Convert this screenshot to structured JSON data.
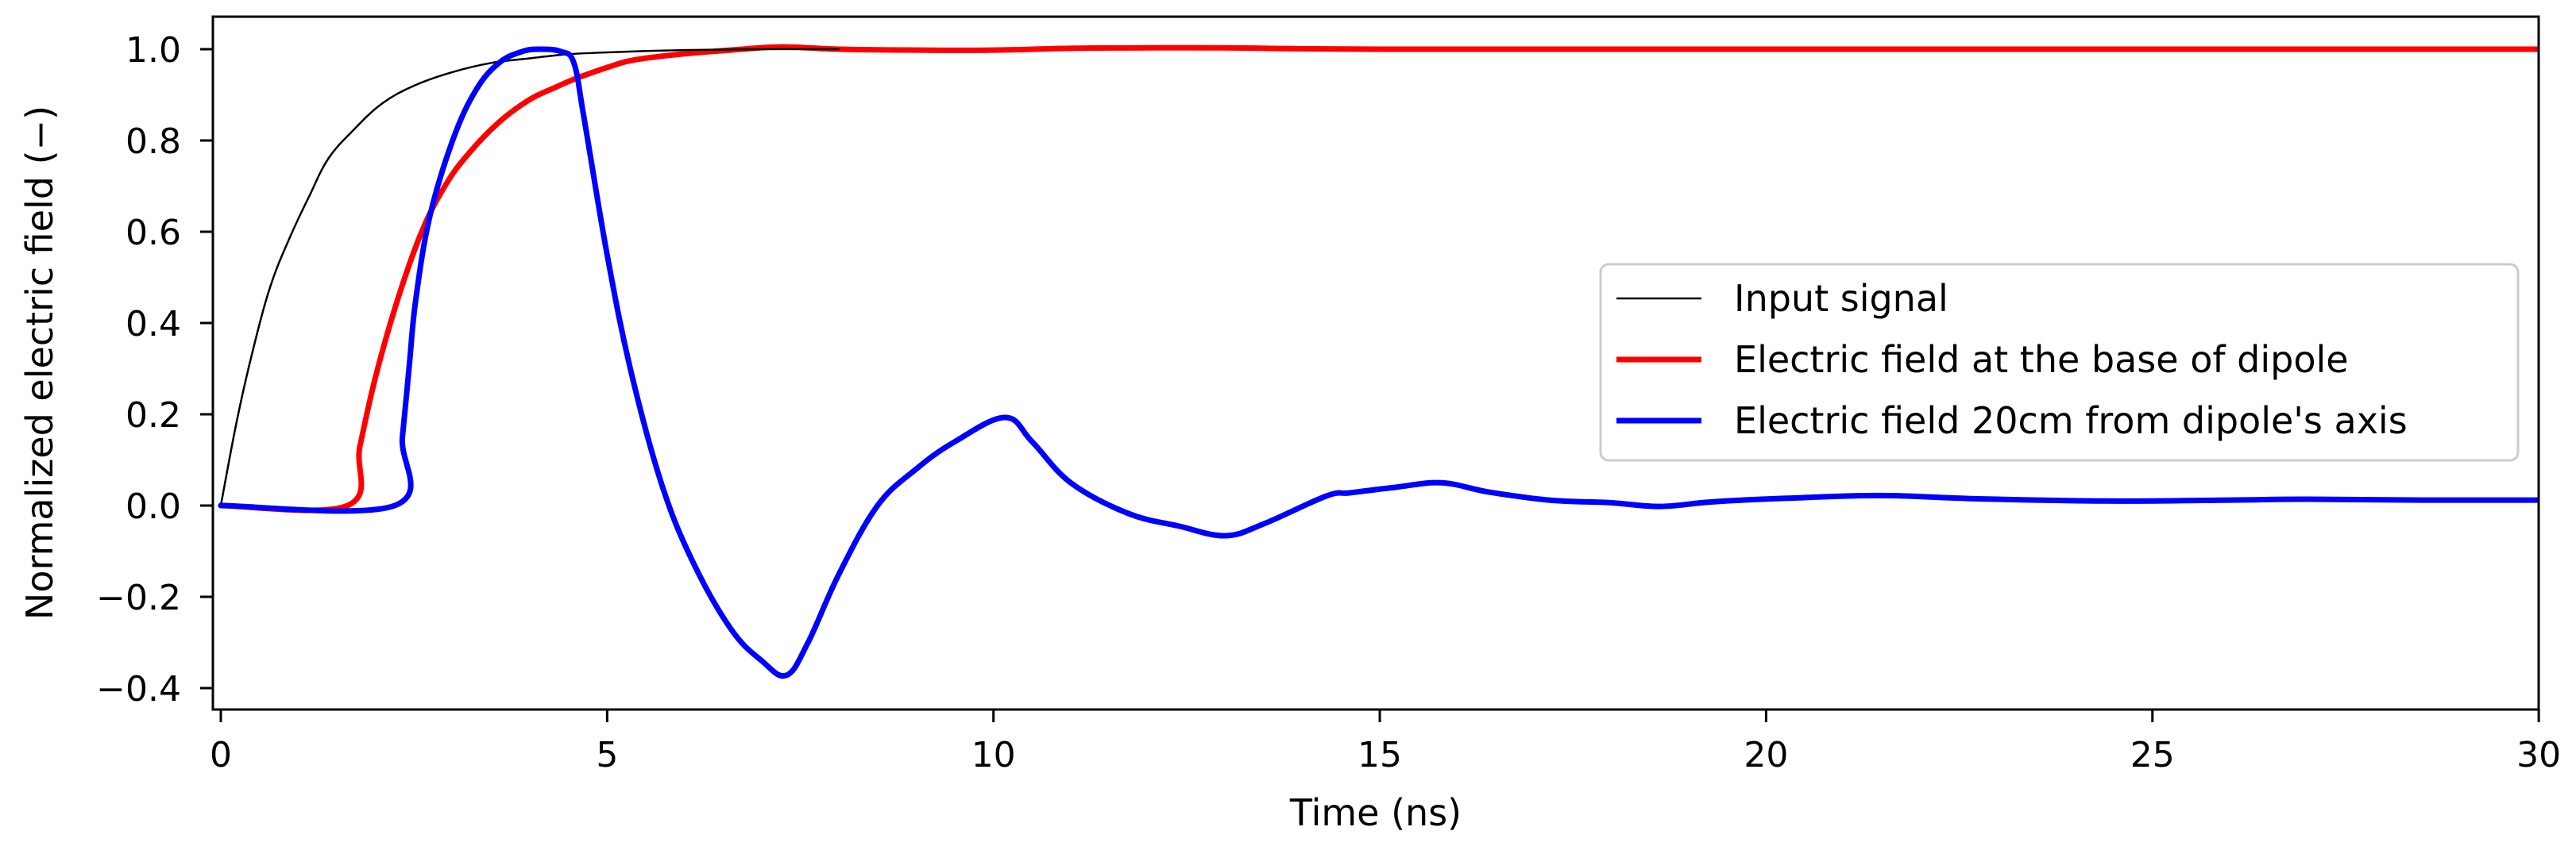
{
  "chart_data": {
    "type": "line",
    "title": "",
    "xlabel": "Time (ns)",
    "ylabel": "Normalized electric field (−)",
    "xlim": [
      -0.1,
      30
    ],
    "ylim": [
      -0.475,
      1.07
    ],
    "grid": false,
    "legend_position": "center right",
    "x_ticks": [
      0,
      5,
      10,
      15,
      20,
      25,
      30
    ],
    "x_tick_labels": [
      "0",
      "5",
      "10",
      "15",
      "20",
      "25",
      "30"
    ],
    "y_ticks": [
      1.0,
      0.8,
      0.6,
      0.4,
      0.2,
      0.0,
      -0.2,
      -0.4
    ],
    "y_tick_labels": [
      "1.0",
      "0.8",
      "0.6",
      "0.4",
      "0.2",
      "0.0",
      "−0.2",
      "−0.4"
    ],
    "series": [
      {
        "name": "Input signal",
        "color": "#000000",
        "line_width": 2.5,
        "x": [
          0,
          0.2,
          0.4,
          0.64,
          0.9,
          1.15,
          1.39,
          1.7,
          2.08,
          2.5,
          3.0,
          3.5,
          4.0,
          4.5,
          5.0,
          5.5,
          6.0,
          7.0,
          8.0
        ],
        "y": [
          0,
          0.18,
          0.33,
          0.48,
          0.59,
          0.68,
          0.76,
          0.82,
          0.88,
          0.92,
          0.95,
          0.97,
          0.98,
          0.989,
          0.993,
          0.996,
          0.998,
          1.0,
          1.0
        ]
      },
      {
        "name": "Electric field at the base of dipole",
        "color": "#ff0000",
        "line_width": 7,
        "x": [
          0,
          1.64,
          1.8,
          2.0,
          2.28,
          2.6,
          2.9,
          3.2,
          3.6,
          4.0,
          4.34,
          4.57,
          5.0,
          5.37,
          6.0,
          6.6,
          7.25,
          8.0,
          9.0,
          10.0,
          11.0,
          12.0,
          13.0,
          15.0,
          20.0,
          25.0,
          30.0
        ],
        "y": [
          0,
          0.0,
          0.13,
          0.28,
          0.447,
          0.6,
          0.7,
          0.77,
          0.84,
          0.89,
          0.917,
          0.934,
          0.96,
          0.977,
          0.99,
          0.998,
          1.005,
          1.0,
          0.998,
          0.998,
          1.002,
          1.003,
          1.003,
          1.0,
          1.0,
          1.0,
          1.0
        ]
      },
      {
        "name": "Electric field 20cm from dipole's axis",
        "color": "#0000ff",
        "line_width": 7,
        "x": [
          0,
          2.25,
          2.35,
          2.44,
          2.52,
          2.7,
          3.0,
          3.3,
          3.6,
          3.9,
          4.13,
          4.4,
          4.57,
          4.7,
          5.0,
          5.3,
          5.7,
          6.1,
          6.6,
          7.0,
          7.32,
          7.6,
          8.0,
          8.5,
          9.0,
          9.5,
          10.15,
          10.5,
          11.0,
          11.74,
          12.4,
          13.0,
          13.5,
          14.31,
          14.62,
          15.2,
          15.8,
          16.4,
          17.19,
          18.0,
          18.63,
          19.3,
          20.27,
          21.49,
          22.7,
          24.39,
          26.0,
          27.0,
          28.5,
          30.0
        ],
        "y": [
          0,
          0.0,
          0.15,
          0.308,
          0.447,
          0.63,
          0.8,
          0.91,
          0.97,
          0.995,
          1.0,
          0.995,
          0.97,
          0.85,
          0.55,
          0.3,
          0.05,
          -0.12,
          -0.27,
          -0.34,
          -0.372,
          -0.3,
          -0.15,
          0.0,
          0.08,
          0.14,
          0.193,
          0.14,
          0.05,
          -0.017,
          -0.045,
          -0.066,
          -0.04,
          0.021,
          0.028,
          0.04,
          0.05,
          0.03,
          0.012,
          0.006,
          -0.002,
          0.008,
          0.016,
          0.022,
          0.015,
          0.01,
          0.012,
          0.014,
          0.012,
          0.012
        ]
      }
    ]
  },
  "legend": {
    "items": [
      {
        "label": "Input signal",
        "color": "#000000"
      },
      {
        "label": "Electric field at the base of dipole",
        "color": "#ff0000"
      },
      {
        "label": "Electric field 20cm from dipole's axis",
        "color": "#0000ff"
      }
    ]
  }
}
